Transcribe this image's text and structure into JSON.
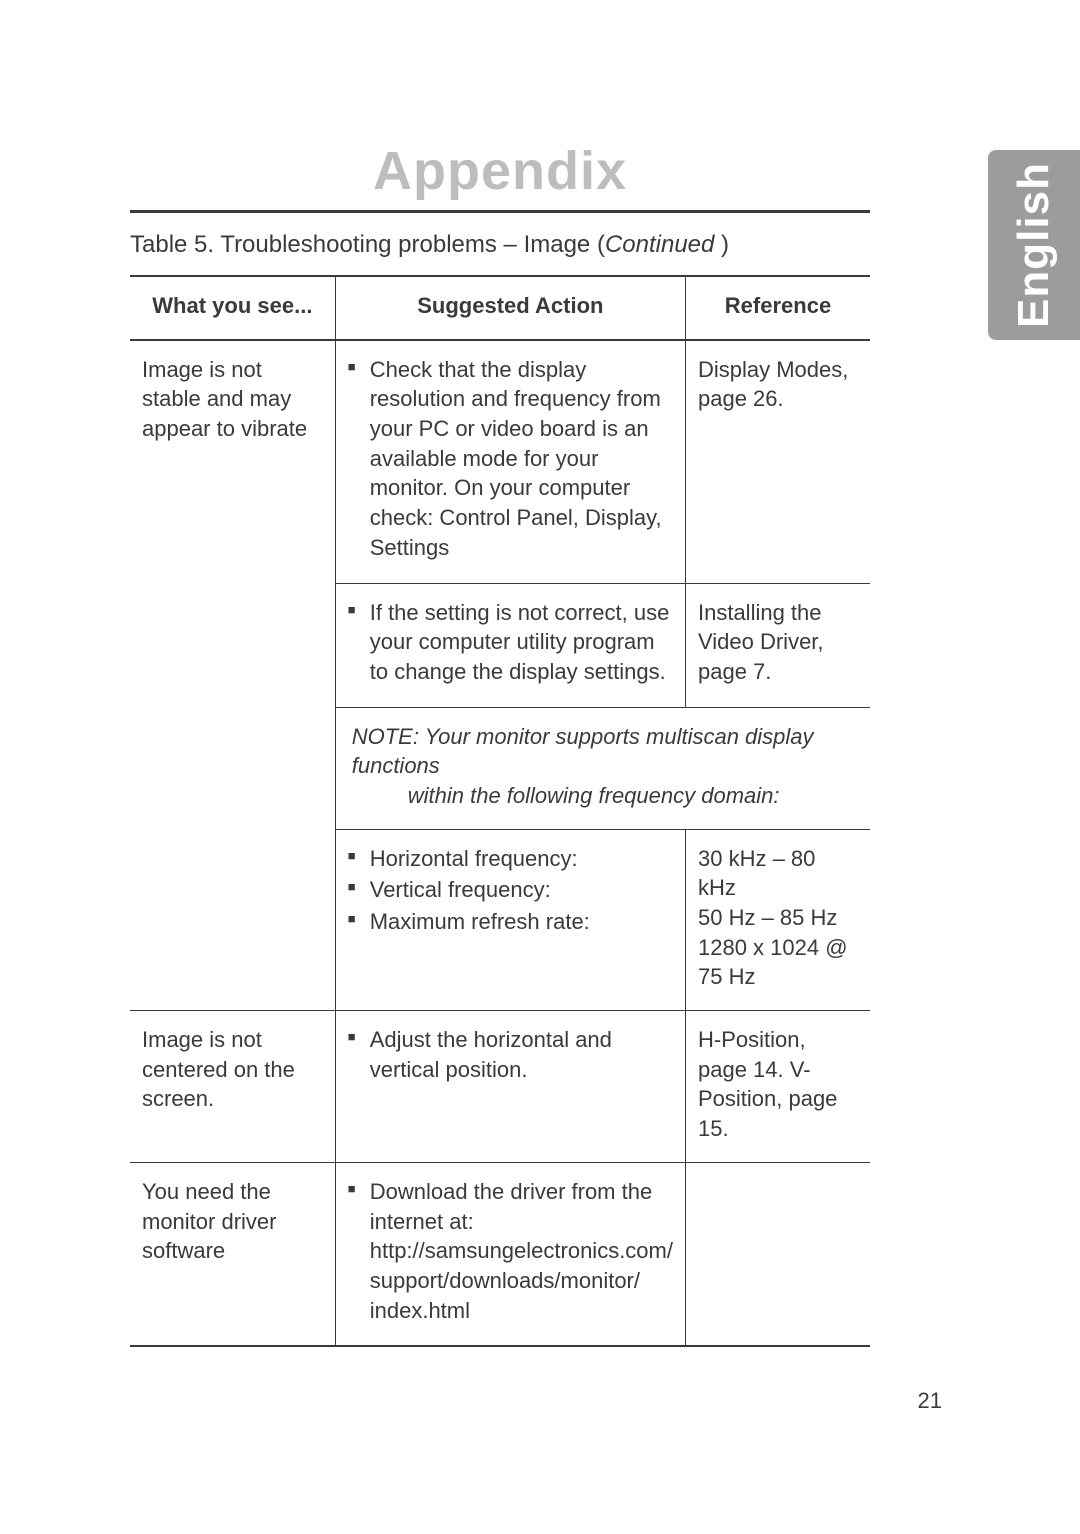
{
  "appendix_title": "Appendix",
  "side_tab_label": "English",
  "page_number": "21",
  "table_caption": {
    "prefix": "Table 5.  Troubleshooting problems – Image (",
    "continued": "Continued",
    "suffix": " )"
  },
  "headers": {
    "what": "What you see...",
    "suggested": "Suggested Action",
    "reference": "Reference"
  },
  "rows": {
    "r1": {
      "what": "Image is not stable and may appear to vibrate",
      "suggested_bullet": "Check that the display resolution and frequency from your PC or video board is an available mode for your monitor. On your computer check: Control Panel, Display, Settings",
      "reference": "Display Modes, page 26."
    },
    "r2": {
      "suggested_bullet": "If the setting is not correct, use your computer utility program to change the display settings.",
      "reference": "Installing the Video Driver, page 7."
    },
    "note": {
      "label": "NOTE:  ",
      "line1": "Your monitor supports multiscan display functions",
      "line2": "within the following frequency domain:"
    },
    "r3": {
      "bullets": {
        "b1": "Horizontal frequency:",
        "b2": "Vertical frequency:",
        "b3": "Maximum refresh rate:"
      },
      "reference": {
        "l1": "30 kHz – 80 kHz",
        "l2": "50 Hz – 85 Hz",
        "l3": "1280 x 1024 @ 75 Hz"
      }
    },
    "r4": {
      "what": "Image is not centered on the screen.",
      "suggested_bullet": "Adjust the horizontal and vertical position.",
      "reference": "H-Position, page 14. V-Position, page 15."
    },
    "r5": {
      "what": "You need the monitor driver software",
      "suggested_bullet": "Download the driver from the internet at:\nhttp://samsungelectronics.com/\nsupport/downloads/monitor/\nindex.html",
      "reference": ""
    }
  },
  "colors": {
    "title_gray": "#bdbdbd",
    "text": "#3a3a3a",
    "tab_bg": "#9c9c9c",
    "tab_text": "#ffffff",
    "background": "#ffffff"
  }
}
